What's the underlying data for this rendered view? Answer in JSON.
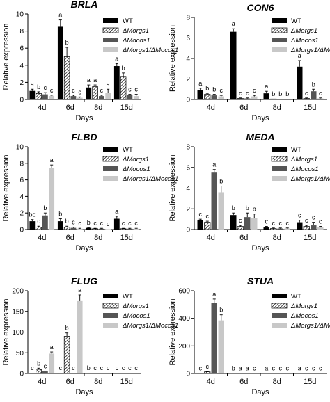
{
  "days_label": "Days",
  "ylabel": "Relative expression",
  "legend_labels": [
    "WT",
    "ΔMorgs1",
    "ΔMocos1",
    "ΔMorgs1/ΔMocos1"
  ],
  "series_colors": [
    "#000000",
    "hatch",
    "#555555",
    "#c8c8c8"
  ],
  "chart_data": [
    {
      "type": "bar",
      "title": "BRLA",
      "xlabel": "Days",
      "ylabel": "Relative expression",
      "categories": [
        "4d",
        "6d",
        "8d",
        "15d"
      ],
      "ylim": [
        0,
        10
      ],
      "yticks": [
        0,
        2,
        4,
        6,
        8,
        10
      ],
      "series": [
        {
          "name": "WT",
          "values": [
            1.0,
            8.5,
            1.4,
            3.9
          ],
          "errors": [
            0.2,
            0.8,
            0.3,
            0.3
          ]
        },
        {
          "name": "ΔMorgs1",
          "values": [
            0.7,
            5.0,
            1.5,
            2.7
          ],
          "errors": [
            0.2,
            1.1,
            0.2,
            0.4
          ]
        },
        {
          "name": "ΔMocos1",
          "values": [
            0.6,
            0.4,
            0.4,
            0.5
          ],
          "errors": [
            0.2,
            0.1,
            0.1,
            0.1
          ]
        },
        {
          "name": "ΔMorgs1/ΔMocos1",
          "values": [
            0.4,
            0.2,
            0.8,
            0.4
          ],
          "errors": [
            0.1,
            0.1,
            0.4,
            0.2
          ]
        }
      ],
      "annotations": [
        [
          "a",
          "b",
          "c",
          "c"
        ],
        [
          "a",
          "b",
          "c",
          "c"
        ],
        [
          "a",
          "a",
          "c",
          "a"
        ],
        [
          "a",
          "b",
          "c",
          "c"
        ]
      ]
    },
    {
      "type": "bar",
      "title": "CON6",
      "xlabel": "Days",
      "ylabel": "Relative expression",
      "categories": [
        "4d",
        "6d",
        "8d",
        "15d"
      ],
      "ylim": [
        0,
        8
      ],
      "yticks": [
        0,
        2,
        4,
        6,
        8
      ],
      "series": [
        {
          "name": "WT",
          "values": [
            0.9,
            6.6,
            0.6,
            3.2
          ],
          "errors": [
            0.2,
            0.3,
            0.2,
            0.6
          ]
        },
        {
          "name": "ΔMorgs1",
          "values": [
            0.5,
            0.1,
            0.05,
            0.1
          ],
          "errors": [
            0.1,
            0.05,
            0.02,
            0.05
          ]
        },
        {
          "name": "ΔMocos1",
          "values": [
            0.4,
            0.1,
            0.05,
            0.8
          ],
          "errors": [
            0.1,
            0.05,
            0.02,
            0.2
          ]
        },
        {
          "name": "ΔMorgs1/ΔMocos1",
          "values": [
            0.3,
            0.3,
            0.05,
            0.1
          ],
          "errors": [
            0.1,
            0.1,
            0.02,
            0.05
          ]
        }
      ],
      "annotations": [
        [
          "a",
          "b",
          "b",
          "c"
        ],
        [
          "a",
          "c",
          "c",
          "c"
        ],
        [
          "a",
          "b",
          "b",
          "b"
        ],
        [
          "a",
          "c",
          "b",
          "c"
        ]
      ]
    },
    {
      "type": "bar",
      "title": "FLBD",
      "xlabel": "Days",
      "ylabel": "Relative expression",
      "categories": [
        "4d",
        "6d",
        "8d",
        "15d"
      ],
      "ylim": [
        0,
        10
      ],
      "yticks": [
        0,
        2,
        4,
        6,
        8,
        10
      ],
      "series": [
        {
          "name": "WT",
          "values": [
            1.0,
            1.0,
            0.2,
            1.3
          ],
          "errors": [
            0.2,
            0.3,
            0.05,
            0.3
          ]
        },
        {
          "name": "ΔMorgs1",
          "values": [
            0.3,
            0.3,
            0.1,
            0.1
          ],
          "errors": [
            0.1,
            0.1,
            0.05,
            0.05
          ]
        },
        {
          "name": "ΔMocos1",
          "values": [
            1.7,
            0.2,
            0.1,
            0.1
          ],
          "errors": [
            0.3,
            0.1,
            0.05,
            0.05
          ]
        },
        {
          "name": "ΔMorgs1/ΔMocos1",
          "values": [
            7.4,
            0.1,
            0.05,
            0.1
          ],
          "errors": [
            0.4,
            0.05,
            0.02,
            0.05
          ]
        }
      ],
      "annotations": [
        [
          "bc",
          "c",
          "b",
          "a"
        ],
        [
          "b",
          "b",
          "c",
          "c"
        ],
        [
          "b",
          "c",
          "c",
          "c"
        ],
        [
          "a",
          "c",
          "c",
          "c"
        ]
      ]
    },
    {
      "type": "bar",
      "title": "MEDA",
      "xlabel": "Days",
      "ylabel": "Relative expression",
      "categories": [
        "4d",
        "6d",
        "8d",
        "15d"
      ],
      "ylim": [
        0,
        8
      ],
      "yticks": [
        0,
        2,
        4,
        6,
        8
      ],
      "series": [
        {
          "name": "WT",
          "values": [
            0.9,
            1.4,
            0.2,
            0.7
          ],
          "errors": [
            0.1,
            0.2,
            0.1,
            0.2
          ]
        },
        {
          "name": "ΔMorgs1",
          "values": [
            0.7,
            0.3,
            0.1,
            0.3
          ],
          "errors": [
            0.1,
            0.1,
            0.05,
            0.1
          ]
        },
        {
          "name": "ΔMocos1",
          "values": [
            5.5,
            1.2,
            0.1,
            0.4
          ],
          "errors": [
            0.3,
            0.4,
            0.05,
            0.3
          ]
        },
        {
          "name": "ΔMorgs1/ΔMocos1",
          "values": [
            3.6,
            1.1,
            0.1,
            0.2
          ],
          "errors": [
            0.6,
            0.4,
            0.05,
            0.1
          ]
        }
      ],
      "annotations": [
        [
          "c",
          "c",
          "a",
          "b"
        ],
        [
          "b",
          "c",
          "b",
          "b"
        ],
        [
          "c",
          "c",
          "c",
          "c"
        ],
        [
          "c",
          "c",
          "c",
          "c"
        ]
      ]
    },
    {
      "type": "bar",
      "title": "FLUG",
      "xlabel": "Days",
      "ylabel": "Relative expression",
      "categories": [
        "4d",
        "6d",
        "8d",
        "15d"
      ],
      "ylim": [
        0,
        200
      ],
      "yticks": [
        0,
        50,
        100,
        150,
        200
      ],
      "series": [
        {
          "name": "WT",
          "values": [
            1,
            1,
            1,
            1
          ],
          "errors": [
            0.3,
            0.3,
            0.3,
            0.3
          ]
        },
        {
          "name": "ΔMorgs1",
          "values": [
            10,
            90,
            1,
            1
          ],
          "errors": [
            3,
            8,
            0.3,
            0.3
          ]
        },
        {
          "name": "ΔMocos1",
          "values": [
            5,
            1,
            1,
            1
          ],
          "errors": [
            1,
            0.3,
            0.3,
            0.3
          ]
        },
        {
          "name": "ΔMorgs1/ΔMocos1",
          "values": [
            48,
            175,
            1,
            1
          ],
          "errors": [
            4,
            15,
            0.3,
            0.3
          ]
        }
      ],
      "annotations": [
        [
          "c",
          "b",
          "c",
          "a"
        ],
        [
          "c",
          "b",
          "c",
          "a"
        ],
        [
          "b",
          "c",
          "c",
          "c"
        ],
        [
          "c",
          "c",
          "c",
          "c"
        ]
      ]
    },
    {
      "type": "bar",
      "title": "STUA",
      "xlabel": "Days",
      "ylabel": "Relative expression",
      "categories": [
        "4d",
        "6d",
        "8d",
        "15d"
      ],
      "ylim": [
        0,
        600
      ],
      "yticks": [
        0,
        200,
        400,
        600
      ],
      "series": [
        {
          "name": "WT",
          "values": [
            1,
            1,
            1,
            1
          ],
          "errors": [
            0.3,
            0.3,
            0.3,
            0.3
          ]
        },
        {
          "name": "ΔMorgs1",
          "values": [
            12,
            1,
            1,
            1
          ],
          "errors": [
            2,
            0.3,
            0.3,
            0.3
          ]
        },
        {
          "name": "ΔMocos1",
          "values": [
            510,
            1,
            1,
            1
          ],
          "errors": [
            30,
            0.3,
            0.3,
            0.3
          ]
        },
        {
          "name": "ΔMorgs1/ΔMocos1",
          "values": [
            385,
            1,
            1,
            1
          ],
          "errors": [
            40,
            0.3,
            0.3,
            0.3
          ]
        }
      ],
      "annotations": [
        [
          "c",
          "c",
          "a",
          "b"
        ],
        [
          "b",
          "a",
          "a",
          "c"
        ],
        [
          "a",
          "c",
          "c",
          "c"
        ],
        [
          "a",
          "c",
          "c",
          "c"
        ]
      ]
    }
  ]
}
